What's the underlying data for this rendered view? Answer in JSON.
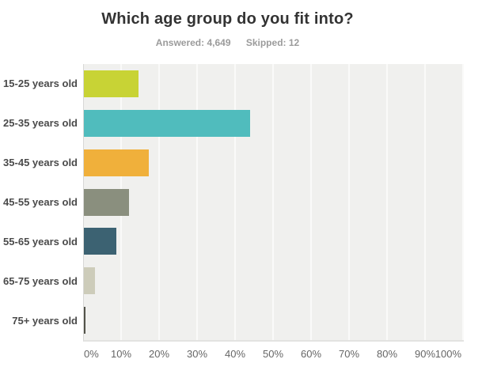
{
  "header": {
    "title": "Which age group do you fit into?",
    "answered": "Answered: 4,649",
    "skipped": "Skipped: 12"
  },
  "chart_data": {
    "type": "bar",
    "orientation": "horizontal",
    "title": "Which age group do you fit into?",
    "answered_count": "4,649",
    "skipped_count": "12",
    "categories": [
      "15-25 years old",
      "25-35 years old",
      "35-45 years old",
      "45-55 years old",
      "55-65 years old",
      "65-75 years old",
      "75+ years old"
    ],
    "values": [
      14.4,
      43.7,
      17.1,
      11.9,
      8.6,
      3.0,
      0.5
    ],
    "unit": "%",
    "bar_colors": [
      "#c8d335",
      "#50bcbd",
      "#f0b03b",
      "#8a8f7e",
      "#3c6272",
      "#cdccba",
      "#53534a"
    ],
    "x_ticks": [
      "0%",
      "10%",
      "20%",
      "30%",
      "40%",
      "50%",
      "60%",
      "70%",
      "80%",
      "90%",
      "100%"
    ],
    "xlim": [
      0,
      100
    ],
    "grid": true,
    "legend": false,
    "plot_background": "#f0f0ee"
  }
}
